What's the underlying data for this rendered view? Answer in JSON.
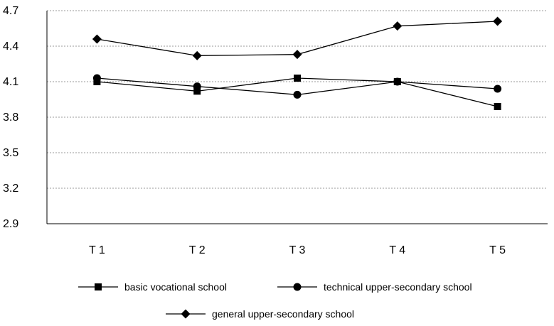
{
  "chart_data": {
    "type": "line",
    "categories": [
      "T 1",
      "T 2",
      "T 3",
      "T 4",
      "T 5"
    ],
    "ylim": [
      2.9,
      4.7
    ],
    "yticks": [
      "4.7",
      "4.4",
      "4.1",
      "3.8",
      "3.5",
      "3.2",
      "2.9"
    ],
    "ytick_values": [
      4.7,
      4.4,
      4.1,
      3.8,
      3.5,
      3.2,
      2.9
    ],
    "grid": "horizontal-dashed",
    "legend_position": "bottom",
    "series": [
      {
        "name": "basic vocational school",
        "marker": "square",
        "values": [
          4.1,
          4.02,
          4.13,
          4.1,
          3.89
        ]
      },
      {
        "name": "technical upper-secondary school",
        "marker": "circle",
        "values": [
          4.13,
          4.06,
          3.99,
          4.1,
          4.04
        ]
      },
      {
        "name": "general upper-secondary school",
        "marker": "diamond",
        "values": [
          4.46,
          4.32,
          4.33,
          4.57,
          4.61
        ]
      }
    ]
  }
}
